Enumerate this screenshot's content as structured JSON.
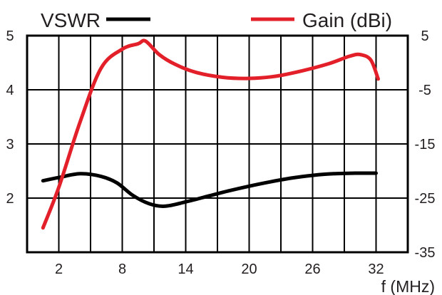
{
  "chart_data": {
    "type": "line",
    "xlabel": "f (MHz)",
    "x_ticks": [
      2,
      8,
      14,
      20,
      26,
      32
    ],
    "xlim": [
      -1,
      35
    ],
    "y_left": {
      "ticks": [
        2,
        3,
        4,
        5
      ],
      "lim": [
        1,
        5
      ]
    },
    "y_right": {
      "ticks": [
        -35,
        -25,
        -15,
        -5,
        5
      ],
      "lim": [
        -35,
        5
      ]
    },
    "grid": true,
    "legend": [
      {
        "name": "VSWR",
        "color": "#000000",
        "position": "top-left"
      },
      {
        "name": "Gain (dBi)",
        "color": "#e3202a",
        "position": "top-right"
      }
    ],
    "series": [
      {
        "name": "VSWR",
        "axis": "left",
        "color": "#000000",
        "x": [
          0.5,
          2,
          4,
          6,
          7.5,
          9,
          10.5,
          12,
          14,
          16,
          18,
          20,
          22,
          24,
          26,
          28,
          30,
          32
        ],
        "values": [
          2.32,
          2.38,
          2.45,
          2.4,
          2.28,
          2.05,
          1.9,
          1.85,
          1.93,
          2.03,
          2.13,
          2.22,
          2.3,
          2.37,
          2.42,
          2.45,
          2.46,
          2.46
        ]
      },
      {
        "name": "Gain (dBi)",
        "axis": "right",
        "color": "#e3202a",
        "x": [
          0.5,
          2,
          4,
          6,
          8,
          9.5,
          10.2,
          11.5,
          13,
          15,
          17.5,
          20,
          22.5,
          25,
          27.5,
          29.5,
          30.5,
          31.5,
          32.2
        ],
        "values": [
          -30.5,
          -23,
          -11,
          -1,
          2.5,
          3.5,
          4,
          1.5,
          -0.3,
          -1.8,
          -2.7,
          -2.9,
          -2.5,
          -1.5,
          -0.2,
          1.2,
          1.5,
          0.5,
          -3
        ]
      }
    ]
  }
}
